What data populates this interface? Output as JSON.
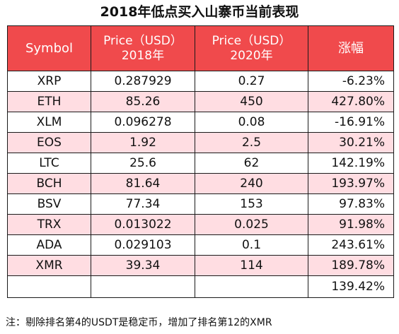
{
  "title": "2018年低点买入山寨币当前表现",
  "columns": {
    "symbol": "Symbol",
    "price2018_line1": "Price（USD）",
    "price2018_line2": "2018年",
    "price2020_line1": "Price（USD）",
    "price2020_line2": "2020年",
    "change": "涨幅"
  },
  "rows": [
    {
      "symbol": "XRP",
      "p2018": "0.287929",
      "p2020": "0.27",
      "change": "-6.23%"
    },
    {
      "symbol": "ETH",
      "p2018": "85.26",
      "p2020": "450",
      "change": "427.80%"
    },
    {
      "symbol": "XLM",
      "p2018": "0.096278",
      "p2020": "0.08",
      "change": "-16.91%"
    },
    {
      "symbol": "EOS",
      "p2018": "1.92",
      "p2020": "2.5",
      "change": "30.21%"
    },
    {
      "symbol": "LTC",
      "p2018": "25.6",
      "p2020": "62",
      "change": "142.19%"
    },
    {
      "symbol": "BCH",
      "p2018": "81.64",
      "p2020": "240",
      "change": "193.97%"
    },
    {
      "symbol": "BSV",
      "p2018": "77.34",
      "p2020": "153",
      "change": "97.83%"
    },
    {
      "symbol": "TRX",
      "p2018": "0.013022",
      "p2020": "0.025",
      "change": "91.98%"
    },
    {
      "symbol": "ADA",
      "p2018": "0.029103",
      "p2020": "0.1",
      "change": "243.61%"
    },
    {
      "symbol": "XMR",
      "p2018": "39.34",
      "p2020": "114",
      "change": "189.78%"
    }
  ],
  "average_change": "139.42%",
  "note": "注：剔除排名第4的USDT是稳定币，增加了排名第12的XMR",
  "colors": {
    "header_bg": "#f04a4c",
    "striped_row_bg": "#ffdde2"
  }
}
